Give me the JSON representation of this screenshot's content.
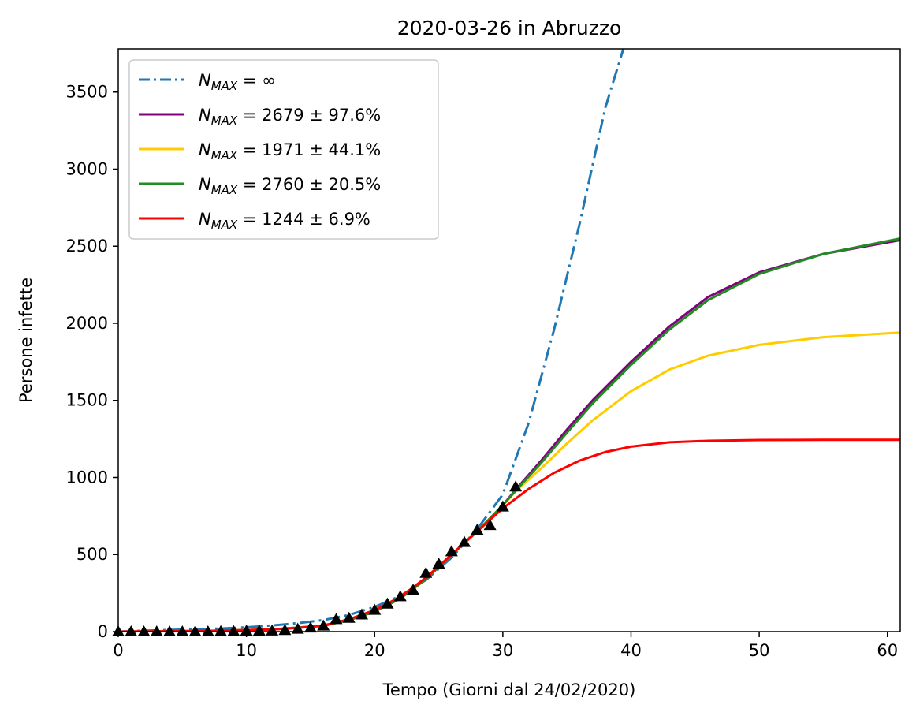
{
  "chart_data": {
    "type": "line",
    "title": "2020-03-26 in Abruzzo",
    "xlabel": "Tempo (Giorni dal 24/02/2020)",
    "ylabel": "Persone infette",
    "xlim": [
      0,
      61
    ],
    "ylim": [
      0,
      3780
    ],
    "xticks": [
      0,
      10,
      20,
      30,
      40,
      50,
      60
    ],
    "yticks": [
      0,
      500,
      1000,
      1500,
      2000,
      2500,
      3000,
      3500
    ],
    "legend_position": "upper-left",
    "series": [
      {
        "name_math": "N",
        "name_sub": "MAX",
        "name_rest": " = ∞",
        "color": "#1f77b4",
        "style": "dashdot",
        "x": [
          0,
          2,
          4,
          6,
          8,
          10,
          12,
          14,
          16,
          18,
          20,
          22,
          24,
          26,
          28,
          30,
          32,
          34,
          36,
          38,
          39.4
        ],
        "y": [
          0,
          6,
          11,
          16,
          20,
          28,
          40,
          55,
          75,
          108,
          160,
          232,
          335,
          480,
          665,
          890,
          1350,
          1960,
          2650,
          3400,
          3780
        ]
      },
      {
        "name_math": "N",
        "name_sub": "MAX",
        "name_rest": " = 2679 ± 97.6%",
        "color": "#800080",
        "style": "solid",
        "x": [
          0,
          4,
          8,
          12,
          16,
          18,
          20,
          22,
          24,
          26,
          28,
          30,
          31,
          33,
          35,
          37,
          40,
          43,
          46,
          50,
          55,
          61
        ],
        "y": [
          0,
          2,
          6,
          14,
          38,
          75,
          130,
          215,
          340,
          500,
          650,
          820,
          920,
          1110,
          1310,
          1500,
          1750,
          1980,
          2170,
          2330,
          2450,
          2540
        ]
      },
      {
        "name_math": "N",
        "name_sub": "MAX",
        "name_rest": " = 1971 ± 44.1%",
        "color": "#ffcc00",
        "style": "solid",
        "x": [
          0,
          4,
          8,
          12,
          16,
          18,
          20,
          22,
          24,
          26,
          28,
          30,
          31,
          33,
          35,
          37,
          40,
          43,
          46,
          50,
          55,
          61
        ],
        "y": [
          0,
          2,
          6,
          14,
          38,
          75,
          130,
          215,
          340,
          500,
          650,
          820,
          910,
          1060,
          1220,
          1370,
          1560,
          1700,
          1790,
          1860,
          1910,
          1940
        ]
      },
      {
        "name_math": "N",
        "name_sub": "MAX",
        "name_rest": " = 2760 ± 20.5%",
        "color": "#228b22",
        "style": "solid",
        "x": [
          0,
          4,
          8,
          12,
          16,
          18,
          20,
          22,
          24,
          26,
          28,
          30,
          31,
          33,
          35,
          37,
          40,
          43,
          46,
          50,
          55,
          61
        ],
        "y": [
          0,
          2,
          6,
          14,
          38,
          75,
          130,
          215,
          340,
          500,
          650,
          820,
          915,
          1095,
          1290,
          1480,
          1730,
          1960,
          2150,
          2320,
          2450,
          2550
        ]
      },
      {
        "name_math": "N",
        "name_sub": "MAX",
        "name_rest": " = 1244 ± 6.9%",
        "color": "#ff0000",
        "style": "solid",
        "x": [
          0,
          4,
          8,
          12,
          14,
          16,
          18,
          20,
          22,
          24,
          26,
          28,
          30,
          32,
          34,
          36,
          38,
          40,
          43,
          46,
          50,
          55,
          61
        ],
        "y": [
          0,
          2,
          6,
          14,
          24,
          40,
          80,
          140,
          225,
          350,
          500,
          650,
          800,
          925,
          1030,
          1110,
          1165,
          1200,
          1228,
          1238,
          1243,
          1244,
          1244
        ]
      }
    ],
    "observed": {
      "marker": "triangle",
      "color": "#000000",
      "x": [
        0,
        1,
        2,
        3,
        4,
        5,
        6,
        7,
        8,
        9,
        10,
        11,
        12,
        13,
        14,
        15,
        16,
        17,
        18,
        19,
        20,
        21,
        22,
        23,
        24,
        25,
        26,
        27,
        28,
        29,
        30,
        31
      ],
      "y": [
        0,
        0,
        0,
        0,
        0,
        0,
        0,
        0,
        1,
        2,
        5,
        5,
        6,
        9,
        17,
        25,
        38,
        80,
        88,
        110,
        140,
        180,
        228,
        270,
        380,
        440,
        520,
        580,
        660,
        690,
        810,
        940
      ]
    }
  }
}
